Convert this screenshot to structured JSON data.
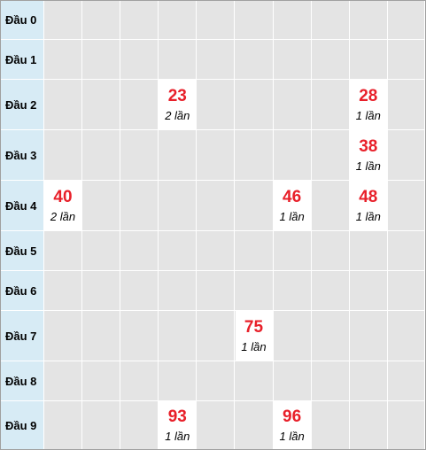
{
  "rows": [
    {
      "label": "Đầu 0",
      "cells": [
        "",
        "",
        "",
        "",
        "",
        "",
        "",
        "",
        "",
        ""
      ],
      "counts": [
        "",
        "",
        "",
        "",
        "",
        "",
        "",
        "",
        "",
        ""
      ]
    },
    {
      "label": "Đầu 1",
      "cells": [
        "",
        "",
        "",
        "",
        "",
        "",
        "",
        "",
        "",
        ""
      ],
      "counts": [
        "",
        "",
        "",
        "",
        "",
        "",
        "",
        "",
        "",
        ""
      ]
    },
    {
      "label": "Đầu 2",
      "cells": [
        "",
        "",
        "",
        "23",
        "",
        "",
        "",
        "",
        "28",
        ""
      ],
      "counts": [
        "",
        "",
        "",
        "2 lần",
        "",
        "",
        "",
        "",
        "1 lần",
        ""
      ]
    },
    {
      "label": "Đầu 3",
      "cells": [
        "",
        "",
        "",
        "",
        "",
        "",
        "",
        "",
        "38",
        ""
      ],
      "counts": [
        "",
        "",
        "",
        "",
        "",
        "",
        "",
        "",
        "1 lần",
        ""
      ]
    },
    {
      "label": "Đầu 4",
      "cells": [
        "40",
        "",
        "",
        "",
        "",
        "",
        "46",
        "",
        "48",
        ""
      ],
      "counts": [
        "2 lần",
        "",
        "",
        "",
        "",
        "",
        "1 lần",
        "",
        "1 lần",
        ""
      ]
    },
    {
      "label": "Đầu 5",
      "cells": [
        "",
        "",
        "",
        "",
        "",
        "",
        "",
        "",
        "",
        ""
      ],
      "counts": [
        "",
        "",
        "",
        "",
        "",
        "",
        "",
        "",
        "",
        ""
      ]
    },
    {
      "label": "Đầu 6",
      "cells": [
        "",
        "",
        "",
        "",
        "",
        "",
        "",
        "",
        "",
        ""
      ],
      "counts": [
        "",
        "",
        "",
        "",
        "",
        "",
        "",
        "",
        "",
        ""
      ]
    },
    {
      "label": "Đầu 7",
      "cells": [
        "",
        "",
        "",
        "",
        "",
        "75",
        "",
        "",
        "",
        ""
      ],
      "counts": [
        "",
        "",
        "",
        "",
        "",
        "1 lần",
        "",
        "",
        "",
        ""
      ]
    },
    {
      "label": "Đầu 8",
      "cells": [
        "",
        "",
        "",
        "",
        "",
        "",
        "",
        "",
        "",
        ""
      ],
      "counts": [
        "",
        "",
        "",
        "",
        "",
        "",
        "",
        "",
        "",
        ""
      ]
    },
    {
      "label": "Đầu 9",
      "cells": [
        "",
        "",
        "",
        "93",
        "",
        "",
        "96",
        "",
        "",
        ""
      ],
      "counts": [
        "",
        "",
        "",
        "1 lần",
        "",
        "",
        "1 lần",
        "",
        "",
        ""
      ]
    }
  ]
}
